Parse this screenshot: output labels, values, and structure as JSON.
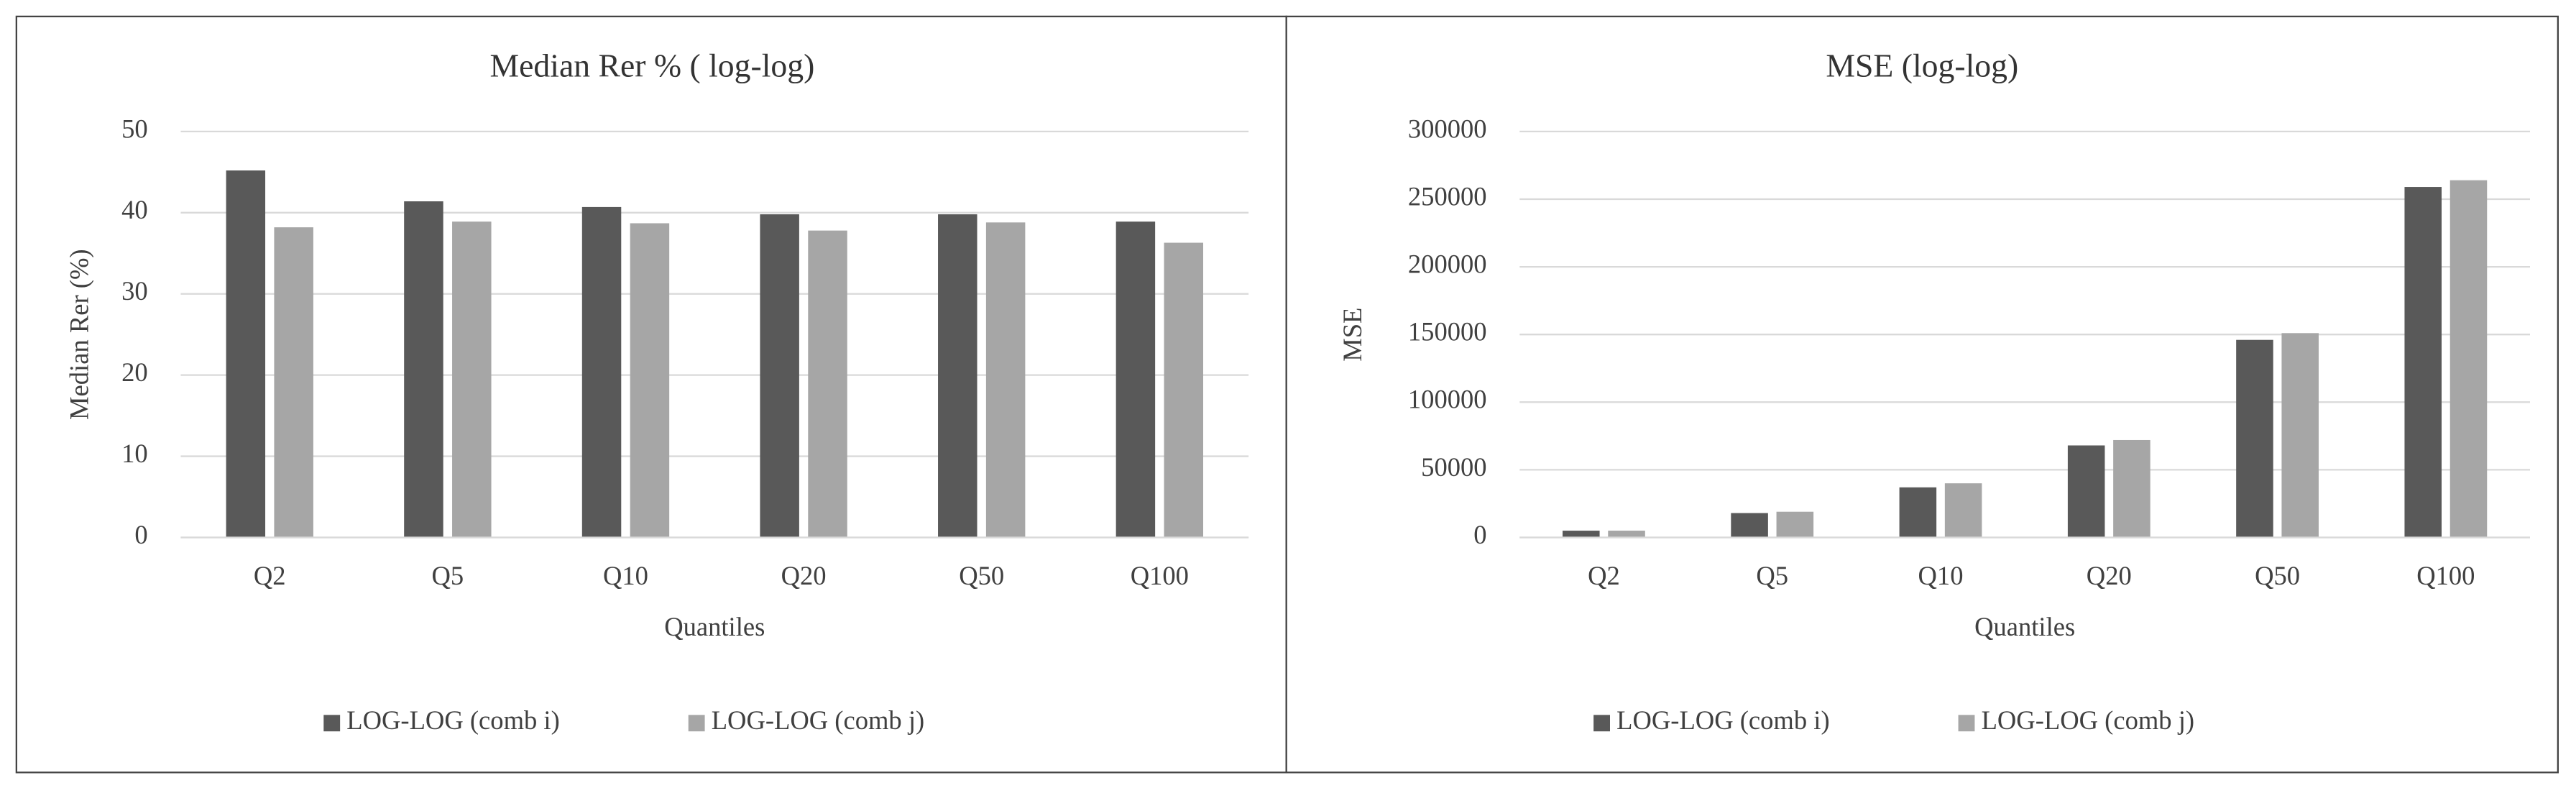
{
  "chart_data": [
    {
      "type": "bar",
      "title": "Median Rer % ( log-log)",
      "x_label": "Quantiles",
      "y_label": "Median Rer (%)",
      "categories": [
        "Q2",
        "Q5",
        "Q10",
        "Q20",
        "Q50",
        "Q100"
      ],
      "series": [
        {
          "name": "LOG-LOG (comb i)",
          "color": "#595959",
          "values": [
            45.2,
            41.4,
            40.7,
            39.8,
            39.8,
            38.9
          ]
        },
        {
          "name": "LOG-LOG (comb j)",
          "color": "#a6a6a6",
          "values": [
            38.2,
            38.9,
            38.7,
            37.8,
            38.8,
            36.3
          ]
        }
      ],
      "ylim": [
        0,
        50
      ],
      "yticks": [
        0,
        10,
        20,
        30,
        40,
        50
      ],
      "grid": true,
      "legend": "bottom"
    },
    {
      "type": "bar",
      "title": "MSE (log-log)",
      "x_label": "Quantiles",
      "y_label": "MSE",
      "categories": [
        "Q2",
        "Q5",
        "Q10",
        "Q20",
        "Q50",
        "Q100"
      ],
      "series": [
        {
          "name": "LOG-LOG (comb i)",
          "color": "#595959",
          "values": [
            5000,
            18000,
            37000,
            68000,
            146000,
            259000
          ]
        },
        {
          "name": "LOG-LOG (comb j)",
          "color": "#a6a6a6",
          "values": [
            5000,
            19000,
            40000,
            72000,
            151000,
            264000
          ]
        }
      ],
      "ylim": [
        0,
        300000
      ],
      "yticks": [
        0,
        50000,
        100000,
        150000,
        200000,
        250000,
        300000
      ],
      "grid": true,
      "legend": "bottom"
    }
  ]
}
